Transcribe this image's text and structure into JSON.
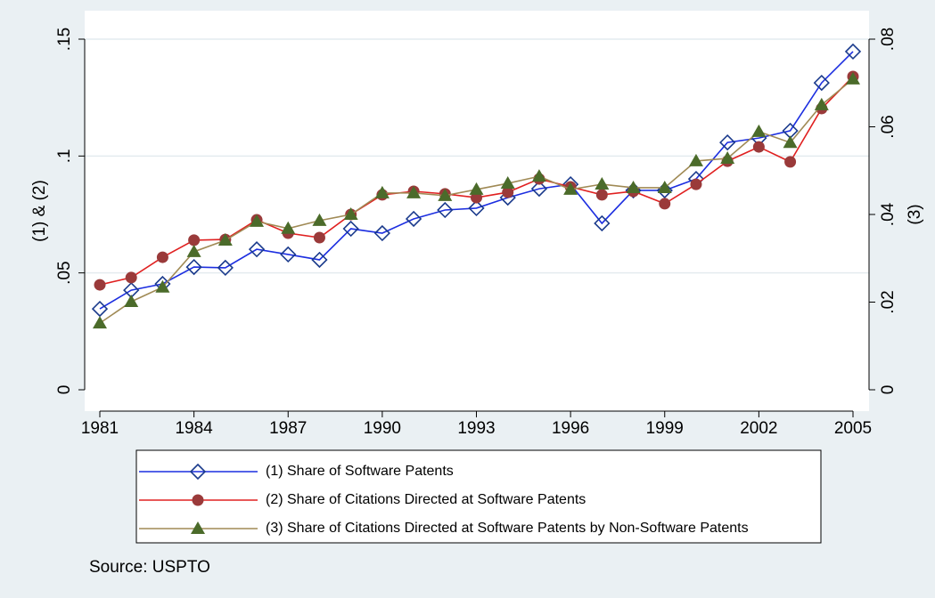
{
  "chart_data": {
    "type": "line",
    "x": [
      1981,
      1982,
      1983,
      1984,
      1985,
      1986,
      1987,
      1988,
      1989,
      1990,
      1991,
      1992,
      1993,
      1994,
      1995,
      1996,
      1997,
      1998,
      1999,
      2000,
      2001,
      2002,
      2003,
      2004,
      2005
    ],
    "xlim": [
      1981,
      2005
    ],
    "xticks": [
      1981,
      1984,
      1987,
      1990,
      1993,
      1996,
      1999,
      2002,
      2005
    ],
    "ylabel": "(1) & (2)",
    "ylim": [
      0,
      0.15
    ],
    "yticks": [
      0,
      {
        "value": 0.05,
        "label": ".05"
      },
      {
        "value": 0.1,
        "label": ".1"
      },
      {
        "value": 0.15,
        "label": ".15"
      }
    ],
    "y2label": "(3)",
    "y2lim": [
      0,
      0.08
    ],
    "y2ticks": [
      0,
      {
        "value": 0.02,
        "label": ".02"
      },
      {
        "value": 0.04,
        "label": ".04"
      },
      {
        "value": 0.06,
        "label": ".06"
      },
      {
        "value": 0.08,
        "label": ".08"
      }
    ],
    "grid": true,
    "series": [
      {
        "name": "(1) Share of Software Patents",
        "color": "#1c2ee0",
        "marker": "diamond",
        "marker_color": "#1a3a8c",
        "values": [
          0.0346,
          0.0426,
          0.0453,
          0.0525,
          0.0522,
          0.0601,
          0.0579,
          0.0556,
          0.0689,
          0.067,
          0.0731,
          0.0769,
          0.0777,
          0.0822,
          0.086,
          0.0879,
          0.0712,
          0.0853,
          0.0853,
          0.0902,
          0.1058,
          0.1077,
          0.1108,
          0.1313,
          0.1447
        ]
      },
      {
        "name": "(2) Share of Citations Directed at Software Patents",
        "color": "#e02020",
        "marker": "circle",
        "marker_color": "#9a3a3a",
        "values": [
          0.0449,
          0.048,
          0.0567,
          0.064,
          0.0643,
          0.0727,
          0.067,
          0.0651,
          0.075,
          0.0834,
          0.0849,
          0.0838,
          0.0822,
          0.0845,
          0.0902,
          0.0868,
          0.0834,
          0.0849,
          0.0796,
          0.0879,
          0.0978,
          0.1039,
          0.0975,
          0.1203,
          0.134
        ]
      },
      {
        "name": "(3) Share of Citations Directed at Software Patents by Non-Software Patents",
        "color": "#a08a55",
        "marker": "triangle",
        "marker_color": "#4b6b2a",
        "axis": "y2",
        "values": [
          0.0152,
          0.0201,
          0.0234,
          0.0315,
          0.0341,
          0.0384,
          0.0368,
          0.0386,
          0.04,
          0.0449,
          0.0449,
          0.0443,
          0.0457,
          0.0471,
          0.0487,
          0.0457,
          0.0469,
          0.0461,
          0.0461,
          0.0522,
          0.0528,
          0.0589,
          0.0564,
          0.065,
          0.0709
        ]
      }
    ],
    "note": "Source: USPTO"
  }
}
